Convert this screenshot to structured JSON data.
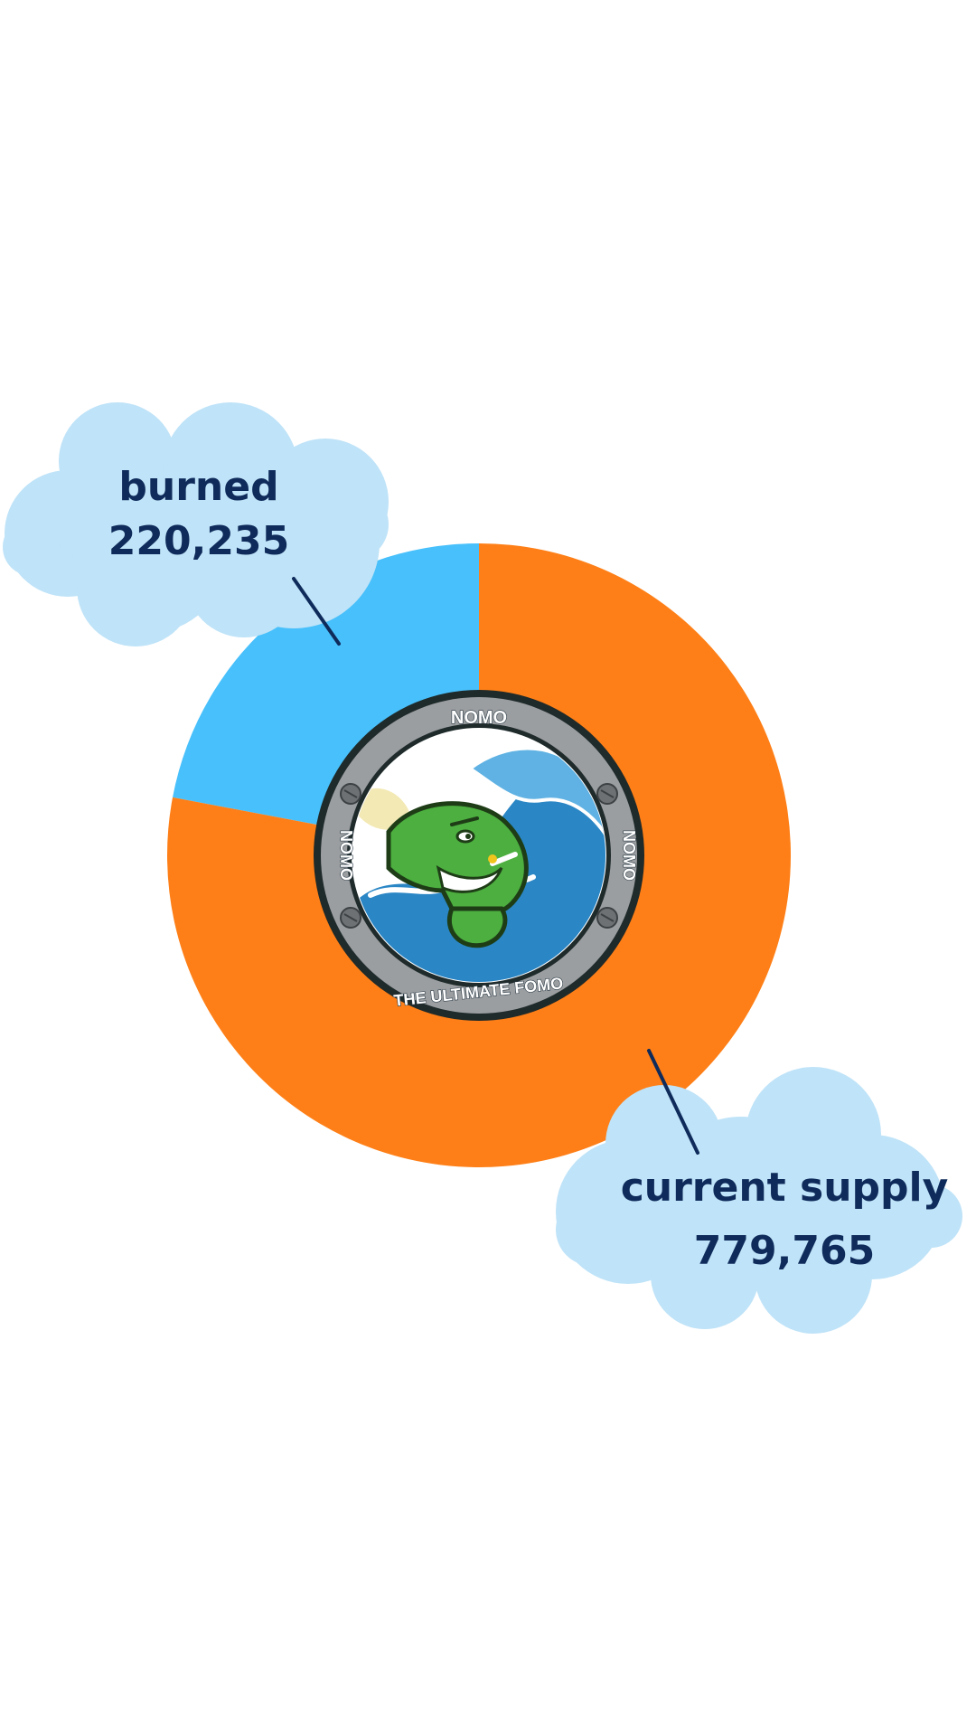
{
  "chart_data": {
    "type": "pie",
    "title": "",
    "slices": [
      {
        "label": "burned",
        "value": 220235,
        "value_text": "220,235",
        "color": "#48c0fb"
      },
      {
        "label": "current supply",
        "value": 779765,
        "value_text": "779,765",
        "color": "#fe7f17"
      }
    ],
    "style": "donut",
    "legend": "none",
    "label_style": "cloud callouts",
    "center_image": "coin-logo"
  },
  "colors": {
    "cloud": "#bfe3f8",
    "label_text": "#0f2b5b",
    "leader_line": "#0f2b5b",
    "coin_ring": "#9b9ea0",
    "coin_rim": "#1f2a2a",
    "mascot": "#4caf3f",
    "wave": "#2a86c5"
  },
  "coin": {
    "top_text": "NOMO",
    "left_text": "NOMO",
    "right_text": "NOMO",
    "bottom_text": "THE ULTIMATE FOMO"
  }
}
